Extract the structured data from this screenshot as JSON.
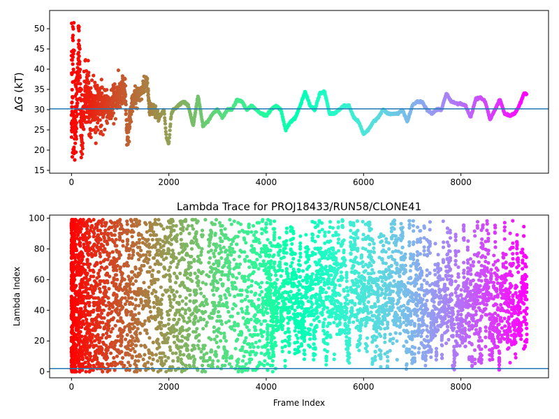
{
  "chart_data": [
    {
      "type": "scatter",
      "title": "",
      "xlabel": "",
      "ylabel_prefix": "Δ",
      "ylabel_symbol": "G",
      "ylabel_suffix": " (kT)",
      "xlim": [
        -450,
        9800
      ],
      "ylim": [
        14.3,
        54.5
      ],
      "x_ticks": [
        0,
        2000,
        4000,
        6000,
        8000
      ],
      "x_tick_labels": [
        "0",
        "2000",
        "4000",
        "6000",
        "8000"
      ],
      "y_ticks": [
        15,
        20,
        25,
        30,
        35,
        40,
        45,
        50
      ],
      "y_tick_labels": [
        "15",
        "20",
        "25",
        "30",
        "35",
        "40",
        "45",
        "50"
      ],
      "grid": false,
      "colormap": "rainbow (color encodes frame index, early = red, late = violet)",
      "reference_line": {
        "y": 30.2,
        "color": "#1f77b4"
      },
      "points_description": "early frames widely scattered 15–52; converges to a step-like trace 24–35 after frame ~2000",
      "anchor_trace": [
        [
          0,
          40
        ],
        [
          50,
          25
        ],
        [
          100,
          30
        ],
        [
          150,
          45
        ],
        [
          200,
          25
        ],
        [
          300,
          35
        ],
        [
          400,
          30
        ],
        [
          500,
          30
        ],
        [
          600,
          32
        ],
        [
          700,
          30
        ],
        [
          800,
          30
        ],
        [
          900,
          33
        ],
        [
          1000,
          35
        ],
        [
          1050,
          36
        ],
        [
          1100,
          34
        ],
        [
          1150,
          22
        ],
        [
          1200,
          29
        ],
        [
          1300,
          33
        ],
        [
          1400,
          34
        ],
        [
          1500,
          36
        ],
        [
          1550,
          38
        ],
        [
          1600,
          30
        ],
        [
          1700,
          30
        ],
        [
          1800,
          28
        ],
        [
          1900,
          30
        ],
        [
          1950,
          23
        ],
        [
          2000,
          21.5
        ],
        [
          2050,
          29
        ],
        [
          2100,
          30
        ],
        [
          2200,
          31
        ],
        [
          2300,
          32
        ],
        [
          2400,
          31
        ],
        [
          2500,
          26
        ],
        [
          2600,
          33.5
        ],
        [
          2700,
          26
        ],
        [
          2800,
          27
        ],
        [
          2900,
          29
        ],
        [
          3000,
          30
        ],
        [
          3100,
          28
        ],
        [
          3200,
          30
        ],
        [
          3300,
          30
        ],
        [
          3400,
          32.5
        ],
        [
          3500,
          32
        ],
        [
          3600,
          30
        ],
        [
          3700,
          31
        ],
        [
          3800,
          30
        ],
        [
          3900,
          29
        ],
        [
          4000,
          28.5
        ],
        [
          4100,
          30
        ],
        [
          4200,
          31
        ],
        [
          4300,
          30
        ],
        [
          4400,
          25
        ],
        [
          4500,
          27
        ],
        [
          4600,
          28
        ],
        [
          4700,
          31
        ],
        [
          4800,
          34.5
        ],
        [
          4900,
          31
        ],
        [
          5000,
          30
        ],
        [
          5100,
          34
        ],
        [
          5200,
          34.5
        ],
        [
          5300,
          29
        ],
        [
          5400,
          29
        ],
        [
          5500,
          30
        ],
        [
          5600,
          31
        ],
        [
          5700,
          31
        ],
        [
          5800,
          28
        ],
        [
          5900,
          27
        ],
        [
          6000,
          24
        ],
        [
          6100,
          25
        ],
        [
          6200,
          27
        ],
        [
          6300,
          28
        ],
        [
          6400,
          30
        ],
        [
          6500,
          29
        ],
        [
          6600,
          29
        ],
        [
          6700,
          29
        ],
        [
          6800,
          30
        ],
        [
          6900,
          27
        ],
        [
          7000,
          31
        ],
        [
          7100,
          32
        ],
        [
          7200,
          32
        ],
        [
          7300,
          30
        ],
        [
          7400,
          29
        ],
        [
          7500,
          30
        ],
        [
          7600,
          30
        ],
        [
          7700,
          34
        ],
        [
          7800,
          32
        ],
        [
          7900,
          31.5
        ],
        [
          8000,
          31.5
        ],
        [
          8100,
          31
        ],
        [
          8200,
          28
        ],
        [
          8300,
          32.5
        ],
        [
          8400,
          33
        ],
        [
          8500,
          32
        ],
        [
          8600,
          27.5
        ],
        [
          8700,
          30
        ],
        [
          8800,
          32.5
        ],
        [
          8900,
          29
        ],
        [
          9000,
          28.5
        ],
        [
          9100,
          29
        ],
        [
          9200,
          31
        ],
        [
          9300,
          34
        ],
        [
          9350,
          34
        ]
      ]
    },
    {
      "type": "scatter",
      "title": "Lambda Trace for PROJ18433/RUN58/CLONE41",
      "xlabel": "Frame Index",
      "ylabel": "Lambda Index",
      "xlim": [
        -450,
        9800
      ],
      "ylim": [
        -4,
        102
      ],
      "x_ticks": [
        0,
        2000,
        4000,
        6000,
        8000
      ],
      "x_tick_labels": [
        "0",
        "2000",
        "4000",
        "6000",
        "8000"
      ],
      "y_ticks": [
        0,
        20,
        40,
        60,
        80,
        100
      ],
      "y_tick_labels": [
        "0",
        "20",
        "40",
        "60",
        "80",
        "100"
      ],
      "grid": false,
      "colormap": "rainbow (color encodes frame index, early = red, late = violet)",
      "reference_line": {
        "y": 2,
        "color": "#1f77b4"
      },
      "points_description": "lambda index 0–99 sampled across frames 0–9350; dense uniform cloud early, vertical streaks of swept lambda values later",
      "x_range": [
        0,
        9350
      ],
      "y_range": [
        0,
        99
      ]
    }
  ]
}
